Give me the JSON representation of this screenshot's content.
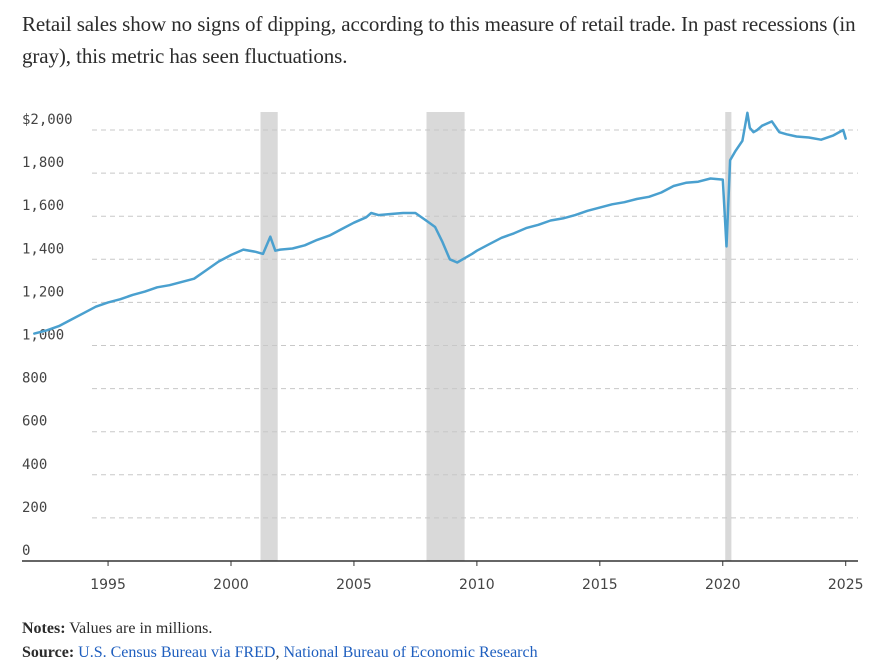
{
  "subtitle": "Retail sales show no signs of dipping, according to this measure of retail trade. In past recessions (in gray), this metric has seen fluctuations.",
  "notes": {
    "label": "Notes:",
    "text": "Values are in millions."
  },
  "source": {
    "label": "Source:",
    "links": [
      {
        "text": "U.S. Census Bureau via FRED"
      },
      {
        "text": "National Bureau of Economic Research"
      }
    ],
    "separator": ", "
  },
  "colors": {
    "line": "#4aa0cf",
    "recession": "#d9d9d9",
    "grid": "#c8c8c8",
    "axis": "#333333",
    "link": "#1f5fbf"
  },
  "chart_data": {
    "type": "line",
    "title": "",
    "xlabel": "",
    "ylabel": "",
    "ylim": [
      0,
      2000
    ],
    "xlim": [
      1991.5,
      2025.5
    ],
    "grid": true,
    "y_ticks": [
      0,
      200,
      400,
      600,
      800,
      1000,
      1200,
      1400,
      1600,
      1800,
      2000
    ],
    "y_tick_labels": [
      "0",
      "200",
      "400",
      "600",
      "800",
      "1,000",
      "1,200",
      "1,400",
      "1,600",
      "1,800",
      "$2,000"
    ],
    "x_ticks": [
      1995,
      2000,
      2005,
      2010,
      2015,
      2020,
      2025
    ],
    "x_tick_labels": [
      "1995",
      "2000",
      "2005",
      "2010",
      "2015",
      "2020",
      "2025"
    ],
    "recessions": [
      {
        "start": 2001.2,
        "end": 2001.9
      },
      {
        "start": 2007.95,
        "end": 2009.5
      },
      {
        "start": 2020.1,
        "end": 2020.35
      }
    ],
    "series": [
      {
        "x": [
          1992.0,
          1992.5,
          1993.0,
          1993.5,
          1994.0,
          1994.5,
          1995.0,
          1995.5,
          1996.0,
          1996.5,
          1997.0,
          1997.5,
          1998.0,
          1998.5,
          1999.0,
          1999.5,
          2000.0,
          2000.5,
          2001.0,
          2001.3,
          2001.6,
          2001.8,
          2002.0,
          2002.5,
          2003.0,
          2003.5,
          2004.0,
          2004.5,
          2005.0,
          2005.5,
          2005.7,
          2006.0,
          2006.5,
          2007.0,
          2007.5,
          2008.0,
          2008.3,
          2008.6,
          2008.9,
          2009.2,
          2009.5,
          2009.8,
          2010.0,
          2010.5,
          2011.0,
          2011.5,
          2012.0,
          2012.5,
          2013.0,
          2013.5,
          2014.0,
          2014.5,
          2015.0,
          2015.5,
          2016.0,
          2016.5,
          2017.0,
          2017.5,
          2018.0,
          2018.5,
          2019.0,
          2019.5,
          2020.0,
          2020.15,
          2020.3,
          2020.5,
          2020.8,
          2021.0,
          2021.1,
          2021.25,
          2021.4,
          2021.6,
          2022.0,
          2022.3,
          2022.6,
          2023.0,
          2023.5,
          2024.0,
          2024.5,
          2024.9,
          2025.0
        ],
        "values": [
          1055,
          1070,
          1090,
          1120,
          1150,
          1180,
          1200,
          1215,
          1235,
          1250,
          1270,
          1280,
          1295,
          1310,
          1350,
          1390,
          1420,
          1445,
          1435,
          1425,
          1505,
          1440,
          1445,
          1450,
          1465,
          1490,
          1510,
          1540,
          1570,
          1595,
          1615,
          1605,
          1610,
          1615,
          1615,
          1575,
          1550,
          1480,
          1400,
          1385,
          1405,
          1425,
          1440,
          1470,
          1500,
          1520,
          1545,
          1560,
          1580,
          1590,
          1605,
          1625,
          1640,
          1655,
          1665,
          1680,
          1690,
          1710,
          1740,
          1755,
          1760,
          1775,
          1770,
          1460,
          1860,
          1900,
          1950,
          2080,
          2010,
          1990,
          2000,
          2020,
          2040,
          1990,
          1980,
          1970,
          1965,
          1955,
          1975,
          2000,
          1960
        ]
      }
    ]
  }
}
